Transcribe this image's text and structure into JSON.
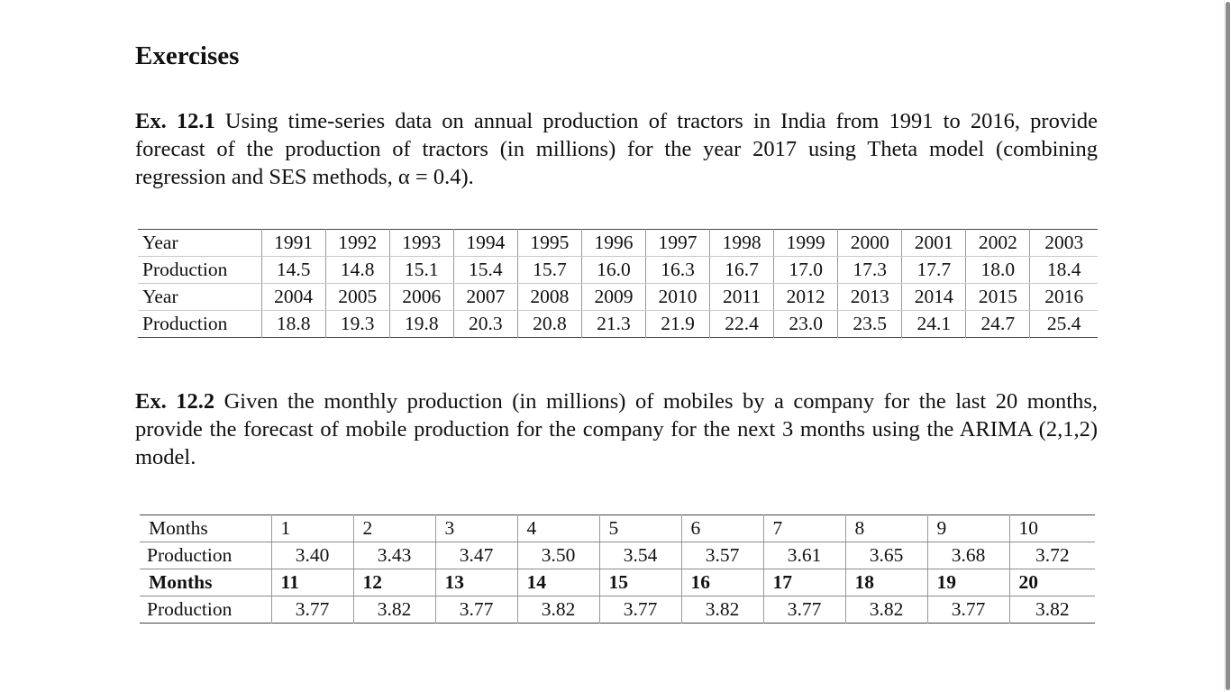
{
  "heading": "Exercises",
  "ex1": {
    "label": "Ex. 12.1",
    "text": " Using time-series data on annual production of tractors in India from 1991 to 2016, provide forecast of the production of tractors (in millions) for the year 2017 using Theta model (combining regression and SES methods, α = 0.4)."
  },
  "table1": {
    "rows": [
      [
        "Year",
        "1991",
        "1992",
        "1993",
        "1994",
        "1995",
        "1996",
        "1997",
        "1998",
        "1999",
        "2000",
        "2001",
        "2002",
        "2003"
      ],
      [
        "Production",
        "14.5",
        "14.8",
        "15.1",
        "15.4",
        "15.7",
        "16.0",
        "16.3",
        "16.7",
        "17.0",
        "17.3",
        "17.7",
        "18.0",
        "18.4"
      ],
      [
        "Year",
        "2004",
        "2005",
        "2006",
        "2007",
        "2008",
        "2009",
        "2010",
        "2011",
        "2012",
        "2013",
        "2014",
        "2015",
        "2016"
      ],
      [
        "Production",
        "18.8",
        "19.3",
        "19.8",
        "20.3",
        "20.8",
        "21.3",
        "21.9",
        "22.4",
        "23.0",
        "23.5",
        "24.1",
        "24.7",
        "25.4"
      ]
    ]
  },
  "ex2": {
    "label": "Ex. 12.2",
    "text": " Given the monthly production (in millions) of mobiles by a company for the last 20 months, provide the forecast of mobile production for the company for the next 3 months using the ARIMA (2,1,2) model."
  },
  "table2": {
    "rows": [
      [
        "Months",
        "1",
        "2",
        "3",
        "4",
        "5",
        "6",
        "7",
        "8",
        "9",
        "10"
      ],
      [
        "Production",
        "3.40",
        "3.43",
        "3.47",
        "3.50",
        "3.54",
        "3.57",
        "3.61",
        "3.65",
        "3.68",
        "3.72"
      ],
      [
        "Months",
        "11",
        "12",
        "13",
        "14",
        "15",
        "16",
        "17",
        "18",
        "19",
        "20"
      ],
      [
        "Production",
        "3.77",
        "3.82",
        "3.77",
        "3.82",
        "3.77",
        "3.82",
        "3.77",
        "3.82",
        "3.77",
        "3.82"
      ]
    ]
  }
}
